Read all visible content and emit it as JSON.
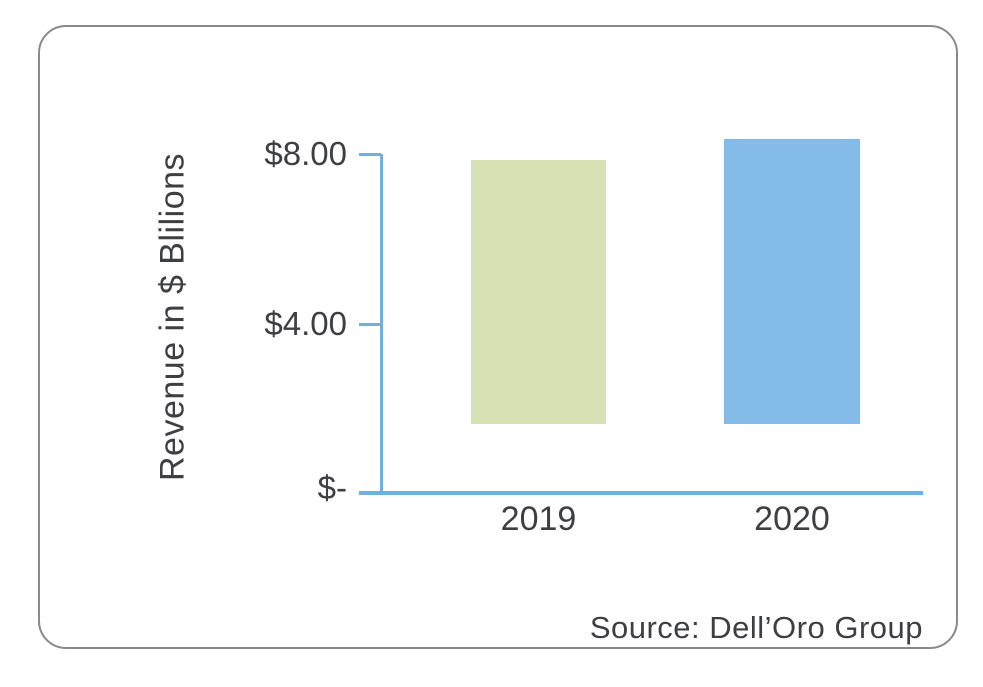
{
  "chart_data": {
    "type": "bar",
    "title": "",
    "categories": [
      "2019",
      "2020"
    ],
    "values": [
      6.2,
      6.7
    ],
    "series_colors": [
      "#d6e1b4",
      "#85bbe8"
    ],
    "ylabel": "Revenue in $ Blilions",
    "xlabel": "",
    "ylim": [
      0,
      8
    ],
    "yticks": [
      {
        "value": 8,
        "label": "$8.00"
      },
      {
        "value": 4,
        "label": "$4.00"
      },
      {
        "value": 0,
        "label": "$-"
      }
    ],
    "grid": false,
    "legend_position": "none",
    "axis_color": "#6fb0de",
    "source_note": "Source: Dell’Oro Group"
  }
}
